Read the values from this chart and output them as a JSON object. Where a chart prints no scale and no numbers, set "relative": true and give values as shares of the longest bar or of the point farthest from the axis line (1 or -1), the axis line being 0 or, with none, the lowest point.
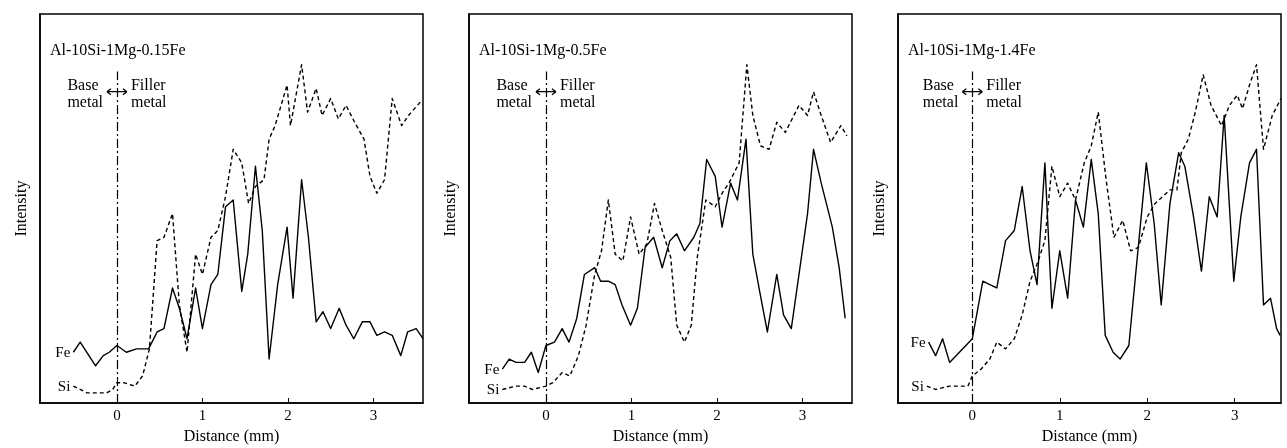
{
  "chart_data": [
    {
      "type": "line",
      "title": "Al-10Si-1Mg-0.15Fe",
      "xlabel": "Distance (mm)",
      "ylabel": "Intensity",
      "relative": true,
      "marker": "none",
      "xlim": [
        -0.9,
        3.58
      ],
      "xticks": [
        0,
        1,
        2,
        3
      ],
      "annotations": [
        "Base metal",
        "Filler metal"
      ],
      "ref_lines": [
        {
          "axis": "x",
          "value": 0,
          "line_style": "dashed",
          "color": "#000000"
        }
      ],
      "series": [
        {
          "name": "Fe",
          "color": "#000000",
          "line_style": "solid",
          "x": [
            -0.51,
            -0.43,
            -0.25,
            -0.16,
            -0.09,
            0,
            0.11,
            0.23,
            0.37,
            0.47,
            0.55,
            0.65,
            0.73,
            0.82,
            0.92,
            1.0,
            1.1,
            1.18,
            1.27,
            1.36,
            1.46,
            1.53,
            1.62,
            1.7,
            1.78,
            1.88,
            1.99,
            2.06,
            2.16,
            2.24,
            2.33,
            2.41,
            2.5,
            2.6,
            2.68,
            2.77,
            2.87,
            2.96,
            3.04,
            3.13,
            3.22,
            3.32,
            3.4,
            3.5,
            3.58
          ],
          "values": [
            0.15,
            0.18,
            0.11,
            0.14,
            0.15,
            0.17,
            0.15,
            0.16,
            0.16,
            0.21,
            0.22,
            0.34,
            0.28,
            0.19,
            0.34,
            0.22,
            0.35,
            0.38,
            0.58,
            0.6,
            0.33,
            0.44,
            0.7,
            0.51,
            0.13,
            0.35,
            0.52,
            0.31,
            0.66,
            0.49,
            0.24,
            0.27,
            0.22,
            0.28,
            0.23,
            0.19,
            0.24,
            0.24,
            0.2,
            0.21,
            0.2,
            0.14,
            0.21,
            0.22,
            0.19
          ]
        },
        {
          "name": "Si",
          "color": "#000000",
          "line_style": "dashed",
          "x": [
            -0.51,
            -0.35,
            -0.12,
            -0.05,
            0,
            0.08,
            0.21,
            0.3,
            0.38,
            0.47,
            0.55,
            0.65,
            0.73,
            0.82,
            0.92,
            1.0,
            1.1,
            1.18,
            1.27,
            1.36,
            1.46,
            1.54,
            1.62,
            1.72,
            1.78,
            1.85,
            1.99,
            2.03,
            2.16,
            2.23,
            2.33,
            2.4,
            2.5,
            2.59,
            2.68,
            2.78,
            2.89,
            2.96,
            3.04,
            3.13,
            3.22,
            3.33,
            3.41,
            3.55
          ],
          "values": [
            0.05,
            0.03,
            0.03,
            0.04,
            0.06,
            0.06,
            0.05,
            0.08,
            0.16,
            0.48,
            0.49,
            0.56,
            0.29,
            0.15,
            0.44,
            0.38,
            0.49,
            0.51,
            0.61,
            0.75,
            0.71,
            0.59,
            0.64,
            0.66,
            0.78,
            0.82,
            0.94,
            0.82,
            1,
            0.86,
            0.93,
            0.85,
            0.9,
            0.84,
            0.88,
            0.83,
            0.78,
            0.67,
            0.62,
            0.66,
            0.9,
            0.82,
            0.85,
            0.89
          ]
        }
      ]
    },
    {
      "type": "line",
      "title": "Al-10Si-1Mg-0.5Fe",
      "xlabel": "Distance (mm)",
      "ylabel": "Intensity",
      "relative": true,
      "marker": "none",
      "xlim": [
        -0.9,
        3.58
      ],
      "xticks": [
        0,
        1,
        2,
        3
      ],
      "annotations": [
        "Base metal",
        "Filler metal"
      ],
      "ref_lines": [
        {
          "axis": "x",
          "value": 0,
          "line_style": "dashed",
          "color": "#000000"
        }
      ],
      "series": [
        {
          "name": "Fe",
          "color": "#000000",
          "line_style": "solid",
          "x": [
            -0.51,
            -0.43,
            -0.35,
            -0.25,
            -0.17,
            -0.09,
            0,
            0.1,
            0.19,
            0.27,
            0.36,
            0.45,
            0.57,
            0.64,
            0.73,
            0.81,
            0.89,
            0.99,
            1.07,
            1.16,
            1.26,
            1.36,
            1.45,
            1.53,
            1.62,
            1.73,
            1.8,
            1.88,
            1.98,
            2.06,
            2.16,
            2.24,
            2.34,
            2.42,
            2.5,
            2.59,
            2.7,
            2.78,
            2.87,
            2.96,
            3.06,
            3.13,
            3.22,
            3.35,
            3.43,
            3.5
          ],
          "values": [
            0.1,
            0.13,
            0.12,
            0.12,
            0.15,
            0.09,
            0.17,
            0.18,
            0.22,
            0.18,
            0.25,
            0.38,
            0.4,
            0.36,
            0.36,
            0.35,
            0.29,
            0.23,
            0.28,
            0.46,
            0.49,
            0.4,
            0.48,
            0.5,
            0.45,
            0.49,
            0.53,
            0.72,
            0.67,
            0.52,
            0.65,
            0.6,
            0.78,
            0.44,
            0.33,
            0.21,
            0.38,
            0.26,
            0.22,
            0.38,
            0.56,
            0.75,
            0.65,
            0.52,
            0.4,
            0.25
          ]
        },
        {
          "name": "Si",
          "color": "#000000",
          "line_style": "dashed",
          "x": [
            -0.51,
            -0.35,
            -0.25,
            -0.16,
            0,
            0.08,
            0.19,
            0.28,
            0.38,
            0.47,
            0.57,
            0.65,
            0.73,
            0.81,
            0.9,
            0.99,
            1.09,
            1.18,
            1.27,
            1.36,
            1.46,
            1.53,
            1.62,
            1.7,
            1.77,
            1.87,
            1.98,
            2.06,
            2.14,
            2.26,
            2.35,
            2.42,
            2.51,
            2.61,
            2.7,
            2.8,
            2.96,
            3.06,
            3.13,
            3.22,
            3.33,
            3.45,
            3.52
          ],
          "values": [
            0.04,
            0.05,
            0.05,
            0.04,
            0.05,
            0.06,
            0.09,
            0.08,
            0.14,
            0.23,
            0.38,
            0.45,
            0.6,
            0.44,
            0.42,
            0.55,
            0.44,
            0.47,
            0.59,
            0.51,
            0.43,
            0.23,
            0.18,
            0.23,
            0.43,
            0.6,
            0.58,
            0.62,
            0.65,
            0.71,
            1,
            0.85,
            0.76,
            0.75,
            0.83,
            0.8,
            0.88,
            0.85,
            0.92,
            0.85,
            0.77,
            0.82,
            0.79
          ]
        }
      ]
    },
    {
      "type": "line",
      "title": "Al-10Si-1Mg-1.4Fe",
      "xlabel": "Distance (mm)",
      "ylabel": "Intensity",
      "relative": true,
      "marker": "none",
      "xlim": [
        -0.85,
        3.53
      ],
      "xticks": [
        0,
        1,
        2,
        3
      ],
      "annotations": [
        "Base metal",
        "Filler metal"
      ],
      "ref_lines": [
        {
          "axis": "x",
          "value": 0,
          "line_style": "dashed",
          "color": "#000000"
        }
      ],
      "series": [
        {
          "name": "Fe",
          "color": "#000000",
          "line_style": "solid",
          "x": [
            -0.5,
            -0.42,
            -0.34,
            -0.26,
            0,
            0.12,
            0.2,
            0.28,
            0.38,
            0.48,
            0.57,
            0.66,
            0.74,
            0.83,
            0.91,
            1.0,
            1.09,
            1.18,
            1.27,
            1.36,
            1.44,
            1.52,
            1.61,
            1.69,
            1.79,
            1.89,
            1.99,
            2.08,
            2.16,
            2.26,
            2.36,
            2.43,
            2.53,
            2.62,
            2.71,
            2.8,
            2.88,
            2.99,
            3.07,
            3.17,
            3.25,
            3.33,
            3.41,
            3.48,
            3.52
          ],
          "values": [
            0.18,
            0.14,
            0.19,
            0.12,
            0.19,
            0.36,
            0.35,
            0.34,
            0.48,
            0.51,
            0.64,
            0.45,
            0.35,
            0.71,
            0.28,
            0.45,
            0.31,
            0.6,
            0.52,
            0.72,
            0.56,
            0.2,
            0.15,
            0.13,
            0.17,
            0.44,
            0.71,
            0.53,
            0.29,
            0.59,
            0.74,
            0.7,
            0.55,
            0.39,
            0.61,
            0.55,
            0.85,
            0.36,
            0.55,
            0.71,
            0.75,
            0.29,
            0.31,
            0.22,
            0.2
          ]
        },
        {
          "name": "Si",
          "color": "#000000",
          "line_style": "dashed",
          "x": [
            -0.52,
            -0.42,
            -0.26,
            -0.05,
            0,
            0.1,
            0.2,
            0.28,
            0.38,
            0.48,
            0.57,
            0.66,
            0.74,
            0.83,
            0.91,
            1.0,
            1.09,
            1.18,
            1.28,
            1.36,
            1.44,
            1.53,
            1.62,
            1.72,
            1.81,
            1.9,
            2.0,
            2.09,
            2.26,
            2.34,
            2.39,
            2.47,
            2.55,
            2.64,
            2.73,
            2.85,
            2.94,
            3.03,
            3.09,
            3.17,
            3.25,
            3.33,
            3.43,
            3.53
          ],
          "values": [
            0.05,
            0.04,
            0.05,
            0.05,
            0.08,
            0.1,
            0.13,
            0.18,
            0.16,
            0.19,
            0.26,
            0.36,
            0.41,
            0.48,
            0.7,
            0.61,
            0.65,
            0.6,
            0.71,
            0.76,
            0.86,
            0.66,
            0.49,
            0.54,
            0.45,
            0.46,
            0.55,
            0.59,
            0.63,
            0.63,
            0.74,
            0.78,
            0.86,
            0.97,
            0.88,
            0.82,
            0.88,
            0.91,
            0.87,
            0.94,
            1,
            0.75,
            0.85,
            0.9
          ]
        }
      ]
    }
  ]
}
